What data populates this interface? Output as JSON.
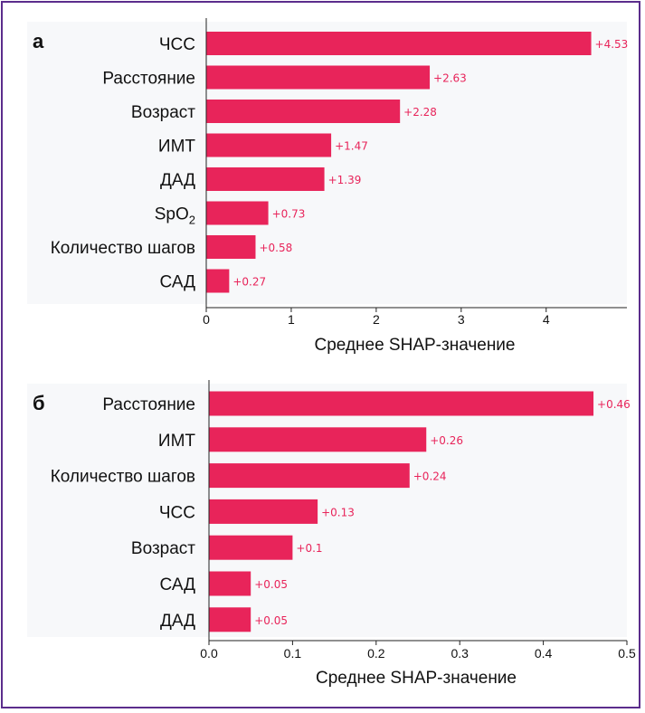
{
  "colors": {
    "bar": "#e8245a",
    "frame": "#5b2d8c",
    "grid_bg": "#f7f8fa"
  },
  "chart_data": [
    {
      "type": "bar",
      "orientation": "horizontal",
      "panel_label": "а",
      "categories": [
        "ЧСС",
        "Расстояние",
        "Возраст",
        "ИМТ",
        "ДАД",
        "SpO2",
        "Количество шагов",
        "САД"
      ],
      "values": [
        4.53,
        2.63,
        2.28,
        1.47,
        1.39,
        0.73,
        0.58,
        0.27
      ],
      "value_labels": [
        "+4.53",
        "+2.63",
        "+2.28",
        "+1.47",
        "+1.39",
        "+0.73",
        "+0.58",
        "+0.27"
      ],
      "xlabel": "Среднее SHAP-значение",
      "xlim": [
        0,
        4.95
      ],
      "xticks": [
        0,
        1,
        2,
        3,
        4
      ],
      "xtick_labels": [
        "0",
        "1",
        "2",
        "3",
        "4"
      ]
    },
    {
      "type": "bar",
      "orientation": "horizontal",
      "panel_label": "б",
      "categories": [
        "Расстояние",
        "ИМТ",
        "Количество шагов",
        "ЧСС",
        "Возраст",
        "САД",
        "ДАД"
      ],
      "values": [
        0.46,
        0.26,
        0.24,
        0.13,
        0.1,
        0.05,
        0.05
      ],
      "value_labels": [
        "+0.46",
        "+0.26",
        "+0.24",
        "+0.13",
        "+0.1",
        "+0.05",
        "+0.05"
      ],
      "xlabel": "Среднее SHAP-значение",
      "xlim": [
        0,
        0.5
      ],
      "xticks": [
        0,
        0.1,
        0.2,
        0.3,
        0.4,
        0.5
      ],
      "xtick_labels": [
        "0.0",
        "0.1",
        "0.2",
        "0.3",
        "0.4",
        "0.5"
      ]
    }
  ]
}
